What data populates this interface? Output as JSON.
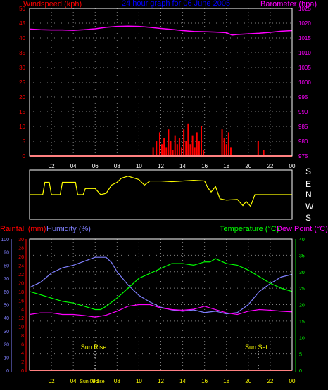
{
  "header": {
    "left_label": "Windspeed (kph)",
    "center_title": "24 hour graph for  06 June 2005",
    "right_label": "Barometer (hpa)"
  },
  "wind_dir_labels": [
    "S",
    "E",
    "N",
    "W",
    "S"
  ],
  "lower_header": {
    "rainfall_label": "Rainfall (mm)",
    "humidity_label": "Humidity (%)",
    "temperature_label": "Temperature (°C)",
    "dewpoint_label": "Dew Point (°C)"
  },
  "annotations": {
    "sunrise": "Sun Rise",
    "sunset": "Sun Set",
    "sunrise_time": "Sun 06:1se"
  },
  "colors": {
    "background": "#000000",
    "frame": "#ffffff",
    "grid": "#808080",
    "wind": "#ff0000",
    "barometer": "#ff00ff",
    "direction": "#ffff00",
    "humidity": "#8080ff",
    "temperature": "#00ff00",
    "dewpoint": "#ff00ff",
    "rainfall": "#ff0000",
    "title": "#0000ff",
    "sun": "#ffff00",
    "axis_green": "#00cc00"
  },
  "chart_data": [
    {
      "type": "line",
      "title": "24 hour graph for  06 June 2005",
      "x_ticks": [
        "02",
        "04",
        "06",
        "08",
        "10",
        "12",
        "14",
        "16",
        "18",
        "20",
        "22",
        "00"
      ],
      "xlim": [
        0,
        24
      ],
      "grid": true,
      "y_left": {
        "label": "Windspeed (kph)",
        "lim": [
          0,
          50
        ],
        "ticks": [
          "0",
          "5",
          "10",
          "15",
          "20",
          "25",
          "30",
          "35",
          "40",
          "45",
          "50"
        ]
      },
      "y_right": {
        "label": "Barometer (hpa)",
        "lim": [
          975,
          1025
        ],
        "ticks": [
          "975",
          "980",
          "985",
          "990",
          "995",
          "1000",
          "1005",
          "1010",
          "1015",
          "1020",
          "1025"
        ]
      },
      "series": [
        {
          "name": "Barometer (hpa)",
          "axis": "right",
          "x": [
            0,
            1,
            2,
            3,
            4,
            5,
            6,
            7,
            8,
            9,
            10,
            11,
            12,
            13,
            14,
            15,
            16,
            17,
            18,
            18.5,
            19,
            20,
            21,
            22,
            23,
            24
          ],
          "y": [
            1018,
            1017.8,
            1017.7,
            1017.7,
            1017.6,
            1017.8,
            1018.1,
            1018.6,
            1018.9,
            1019,
            1018.9,
            1018.6,
            1018.2,
            1017.9,
            1017.5,
            1017.2,
            1017.1,
            1017,
            1016.8,
            1016,
            1016.2,
            1016.4,
            1016.6,
            1016.9,
            1017.3,
            1017.5
          ]
        },
        {
          "name": "Windspeed (kph)",
          "axis": "left",
          "x": [
            11.0,
            11.3,
            11.6,
            11.9,
            12.1,
            12.3,
            12.5,
            12.7,
            12.9,
            13.1,
            13.3,
            13.5,
            13.7,
            13.9,
            14.1,
            14.3,
            14.5,
            14.7,
            14.9,
            15.1,
            15.3,
            15.5,
            15.7,
            15.9,
            17.6,
            17.8,
            18.0,
            18.2,
            18.4,
            20.9,
            21.4
          ],
          "y": [
            0,
            3,
            5,
            8,
            4,
            6,
            3,
            9,
            5,
            2,
            7,
            4,
            6,
            3,
            9,
            5,
            11,
            4,
            7,
            3,
            8,
            5,
            10,
            2,
            9,
            6,
            4,
            8,
            3,
            5,
            2
          ]
        }
      ]
    },
    {
      "type": "line",
      "x_ticks": [
        "02",
        "04",
        "06",
        "08",
        "10",
        "12",
        "14",
        "16",
        "18",
        "20",
        "22",
        "00"
      ],
      "xlim": [
        0,
        24
      ],
      "y_left_labels": [
        "S",
        "E",
        "N",
        "W",
        "S"
      ],
      "series": [
        {
          "name": "Wind direction",
          "x": [
            0,
            1.2,
            1.4,
            1.8,
            2.0,
            2.8,
            3.0,
            4.2,
            4.4,
            4.9,
            5.1,
            6.0,
            6.5,
            7.0,
            7.5,
            8.0,
            8.4,
            8.8,
            9.0,
            9.6,
            10.0,
            10.5,
            11.0,
            12.0,
            13.0,
            14.0,
            15.0,
            16.0,
            16.3,
            16.6,
            17.0,
            17.4,
            18.0,
            19.0,
            19.5,
            19.8,
            20.2,
            20.6,
            24.0
          ],
          "y": [
            180,
            180,
            90,
            90,
            180,
            180,
            90,
            90,
            180,
            180,
            135,
            135,
            180,
            170,
            110,
            90,
            60,
            50,
            45,
            60,
            70,
            110,
            80,
            80,
            85,
            80,
            75,
            80,
            130,
            160,
            120,
            210,
            220,
            215,
            260,
            230,
            265,
            180,
            180
          ]
        }
      ]
    },
    {
      "type": "line",
      "x_ticks": [
        "02",
        "04",
        "06",
        "08",
        "10",
        "12",
        "14",
        "16",
        "18",
        "20",
        "22",
        "00"
      ],
      "xlim": [
        0,
        24
      ],
      "grid": true,
      "y_left_outer": {
        "label": "Humidity (%)",
        "lim": [
          0,
          100
        ],
        "ticks": [
          "0",
          "10",
          "20",
          "30",
          "40",
          "50",
          "60",
          "70",
          "80",
          "90",
          "100"
        ]
      },
      "y_left_inner": {
        "label": "Rainfall (mm)",
        "lim": [
          0,
          30
        ],
        "ticks": [
          "0",
          "2",
          "4",
          "6",
          "8",
          "10",
          "12",
          "14",
          "16",
          "18",
          "20",
          "22",
          "24",
          "26",
          "28",
          "30"
        ]
      },
      "y_right": {
        "label": "Temperature (°C)",
        "lim": [
          0,
          40
        ],
        "ticks": [
          "0",
          "5",
          "10",
          "15",
          "20",
          "25",
          "30",
          "35",
          "40"
        ]
      },
      "series": [
        {
          "name": "Humidity (%)",
          "axis": "left_outer",
          "x": [
            0,
            1,
            2,
            3,
            4,
            5,
            6,
            7,
            7.5,
            8,
            9,
            10,
            11,
            12,
            13,
            14,
            15,
            16,
            17,
            18,
            19,
            20,
            21,
            22,
            23,
            24
          ],
          "y": [
            63,
            67,
            74,
            78,
            80,
            83,
            86,
            86,
            82,
            75,
            65,
            57,
            52,
            48,
            46,
            45,
            46,
            44,
            45,
            43,
            44,
            50,
            60,
            66,
            71,
            73
          ]
        },
        {
          "name": "Temperature (°C)",
          "axis": "right",
          "x": [
            0,
            1,
            2,
            3,
            4,
            5,
            6,
            6.5,
            7,
            8,
            9,
            10,
            11,
            12,
            13,
            14,
            15,
            16,
            16.5,
            17,
            18,
            19,
            20,
            21,
            22,
            23,
            24
          ],
          "y": [
            24,
            23,
            22,
            21,
            20.5,
            19.5,
            18.5,
            18.5,
            19.5,
            22,
            25,
            28,
            29.5,
            31,
            32.5,
            32.5,
            32,
            33,
            33,
            34,
            32.5,
            32,
            30.5,
            28.5,
            26.5,
            25,
            24
          ]
        },
        {
          "name": "Dew Point (°C)",
          "axis": "right",
          "x": [
            0,
            1,
            2,
            3,
            4,
            5,
            6,
            7,
            8,
            9,
            10,
            11,
            12,
            13,
            14,
            15,
            16,
            17,
            18,
            19,
            20,
            21,
            22,
            23,
            24
          ],
          "y": [
            17,
            17.5,
            17.5,
            17,
            17,
            16.7,
            16.2,
            16.8,
            18,
            19.5,
            20,
            20,
            19,
            18.5,
            18.3,
            18.6,
            19.5,
            18.5,
            17.5,
            17,
            18,
            18.5,
            18.3,
            18,
            17.8
          ]
        },
        {
          "name": "Rainfall (mm)",
          "axis": "left_inner",
          "x": [
            0,
            24
          ],
          "y": [
            0,
            0
          ]
        }
      ]
    }
  ]
}
